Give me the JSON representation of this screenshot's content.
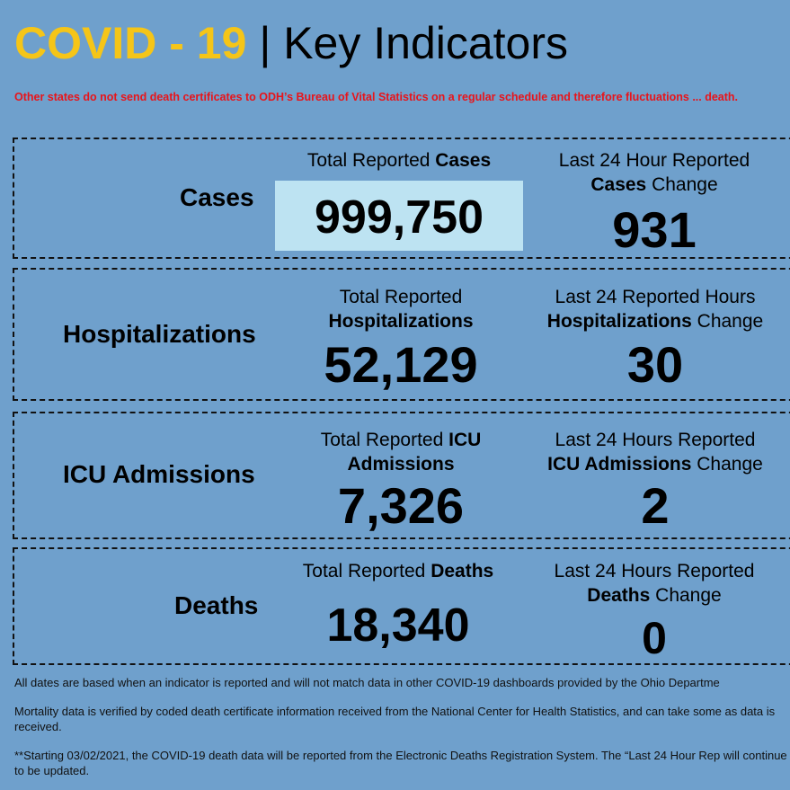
{
  "header": {
    "title_highlight": "COVID - 19",
    "title_rest": "| Key Indicators"
  },
  "notice": "Other states do not send death certificates to ODH’s Bureau of Vital Statistics on a regular schedule and therefore fluctuations ... death.",
  "cases": {
    "label": "Cases",
    "total_caption_pre": "Total Reported ",
    "total_caption_bold": "Cases",
    "total_value": "999,750",
    "change_caption_line1": "Last 24 Hour Reported",
    "change_caption_bold": "Cases",
    "change_caption_post": " Change",
    "change_value": "931"
  },
  "hospitalizations": {
    "label": "Hospitalizations",
    "total_caption_line1": "Total Reported",
    "total_caption_bold": "Hospitalizations",
    "total_value": "52,129",
    "change_caption_line1": "Last 24 Reported Hours",
    "change_caption_bold": "Hospitalizations",
    "change_caption_post": " Change",
    "change_value": "30"
  },
  "icu": {
    "label": "ICU Admissions",
    "total_caption_pre": "Total Reported ",
    "total_caption_bold1": "ICU",
    "total_caption_bold2": "Admissions",
    "total_value": "7,326",
    "change_caption_line1": "Last 24 Hours Reported",
    "change_caption_bold": "ICU Admissions",
    "change_caption_post": " Change",
    "change_value": "2"
  },
  "deaths": {
    "label": "Deaths",
    "total_caption_pre": "Total Reported ",
    "total_caption_bold": "Deaths",
    "total_value": "18,340",
    "change_caption_line1": "Last 24 Hours Reported",
    "change_caption_bold": "Deaths",
    "change_caption_post": " Change",
    "change_value": "0"
  },
  "footnotes": {
    "note1": "All dates are based when an indicator is reported and will not match data in other COVID-19 dashboards provided by the Ohio Departme",
    "note2": "Mortality data is verified by coded death certificate information received from the National Center for Health Statistics, and can take some as data is received.",
    "note3": "**Starting 03/02/2021, the COVID-19 death data will be reported from the Electronic Deaths Registration System. The “Last 24 Hour Rep will continue to be updated."
  },
  "colors": {
    "background": "#6fa0cc",
    "title_accent": "#f5c518",
    "notice_red": "#e8141a",
    "highlight_box": "#bde3f2"
  }
}
